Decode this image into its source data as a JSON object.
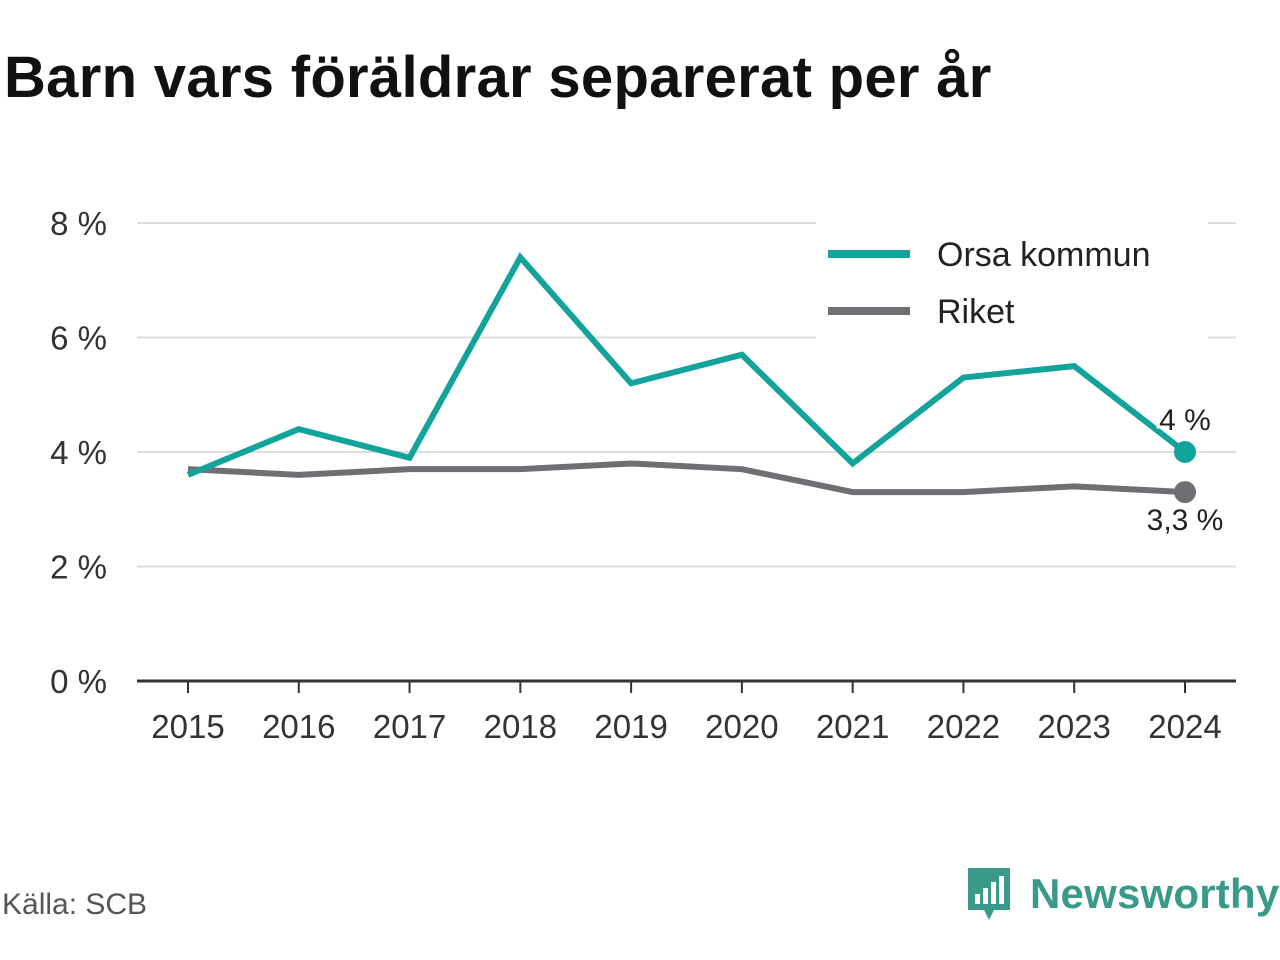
{
  "title": "Barn vars föräldrar separerat per år",
  "source": "Källa: SCB",
  "brand": {
    "name": "Newsworthy",
    "icon": "newsworthy-logo-icon",
    "color": "#3a9a8a"
  },
  "chart_data": {
    "type": "line",
    "title": "Barn vars föräldrar separerat per år",
    "xlabel": "",
    "ylabel": "",
    "x": [
      "2015",
      "2016",
      "2017",
      "2018",
      "2019",
      "2020",
      "2021",
      "2022",
      "2023",
      "2024"
    ],
    "ylim": [
      0,
      8
    ],
    "yticks": [
      0,
      2,
      4,
      6,
      8
    ],
    "ytick_labels": [
      "0 %",
      "2 %",
      "4 %",
      "6 %",
      "8 %"
    ],
    "grid": true,
    "legend": "top-right",
    "series": [
      {
        "name": "Orsa kommun",
        "color": "#12a39a",
        "values": [
          3.6,
          4.4,
          3.9,
          7.4,
          5.2,
          5.7,
          3.8,
          5.3,
          5.5,
          4.0
        ],
        "end_label": "4 %"
      },
      {
        "name": "Riket",
        "color": "#6f6e73",
        "values": [
          3.7,
          3.6,
          3.7,
          3.7,
          3.8,
          3.7,
          3.3,
          3.3,
          3.4,
          3.3
        ],
        "end_label": "3,3 %"
      }
    ]
  }
}
